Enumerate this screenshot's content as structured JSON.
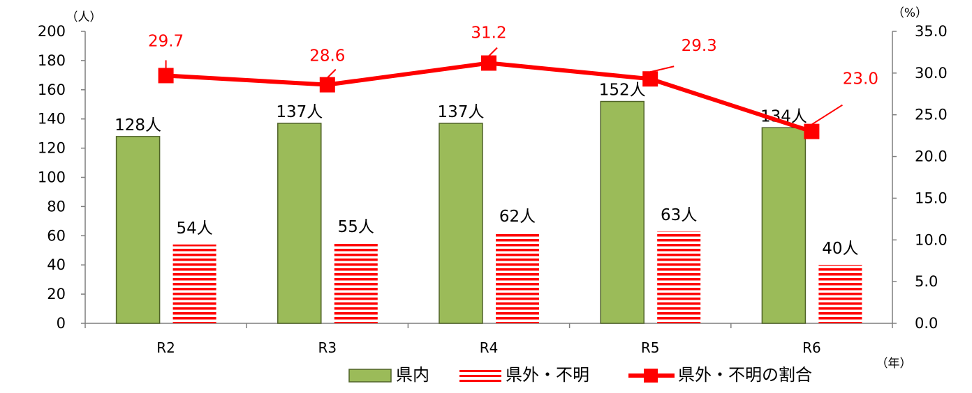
{
  "chart_data": {
    "type": "bar",
    "categories": [
      "R2",
      "R3",
      "R4",
      "R5",
      "R6"
    ],
    "series": [
      {
        "name": "県内",
        "axis": "left",
        "kind": "bar",
        "color": "#9bbb59",
        "values": [
          128,
          137,
          137,
          152,
          134
        ],
        "labels": [
          "128人",
          "137人",
          "137人",
          "152人",
          "134人"
        ]
      },
      {
        "name": "県外・不明",
        "axis": "left",
        "kind": "bar-striped",
        "color": "#ff0000",
        "values": [
          54,
          55,
          62,
          63,
          40
        ],
        "labels": [
          "54人",
          "55人",
          "62人",
          "63人",
          "40人"
        ]
      },
      {
        "name": "県外・不明の割合",
        "axis": "right",
        "kind": "line",
        "color": "#ff0000",
        "values": [
          29.7,
          28.6,
          31.2,
          29.3,
          23.0
        ],
        "labels": [
          "29.7",
          "28.6",
          "31.2",
          "29.3",
          "23.0"
        ]
      }
    ],
    "y_left": {
      "unit": "（人）",
      "ylim": [
        0,
        200
      ],
      "ticks": [
        "0",
        "20",
        "40",
        "60",
        "80",
        "100",
        "120",
        "140",
        "160",
        "180",
        "200"
      ]
    },
    "y_right": {
      "unit": "（%）",
      "ylim": [
        0,
        35
      ],
      "ticks": [
        "0.0",
        "5.0",
        "10.0",
        "15.0",
        "20.0",
        "25.0",
        "30.0",
        "35.0"
      ]
    },
    "x_unit": "（年）",
    "grid": false,
    "legend_position": "bottom"
  }
}
